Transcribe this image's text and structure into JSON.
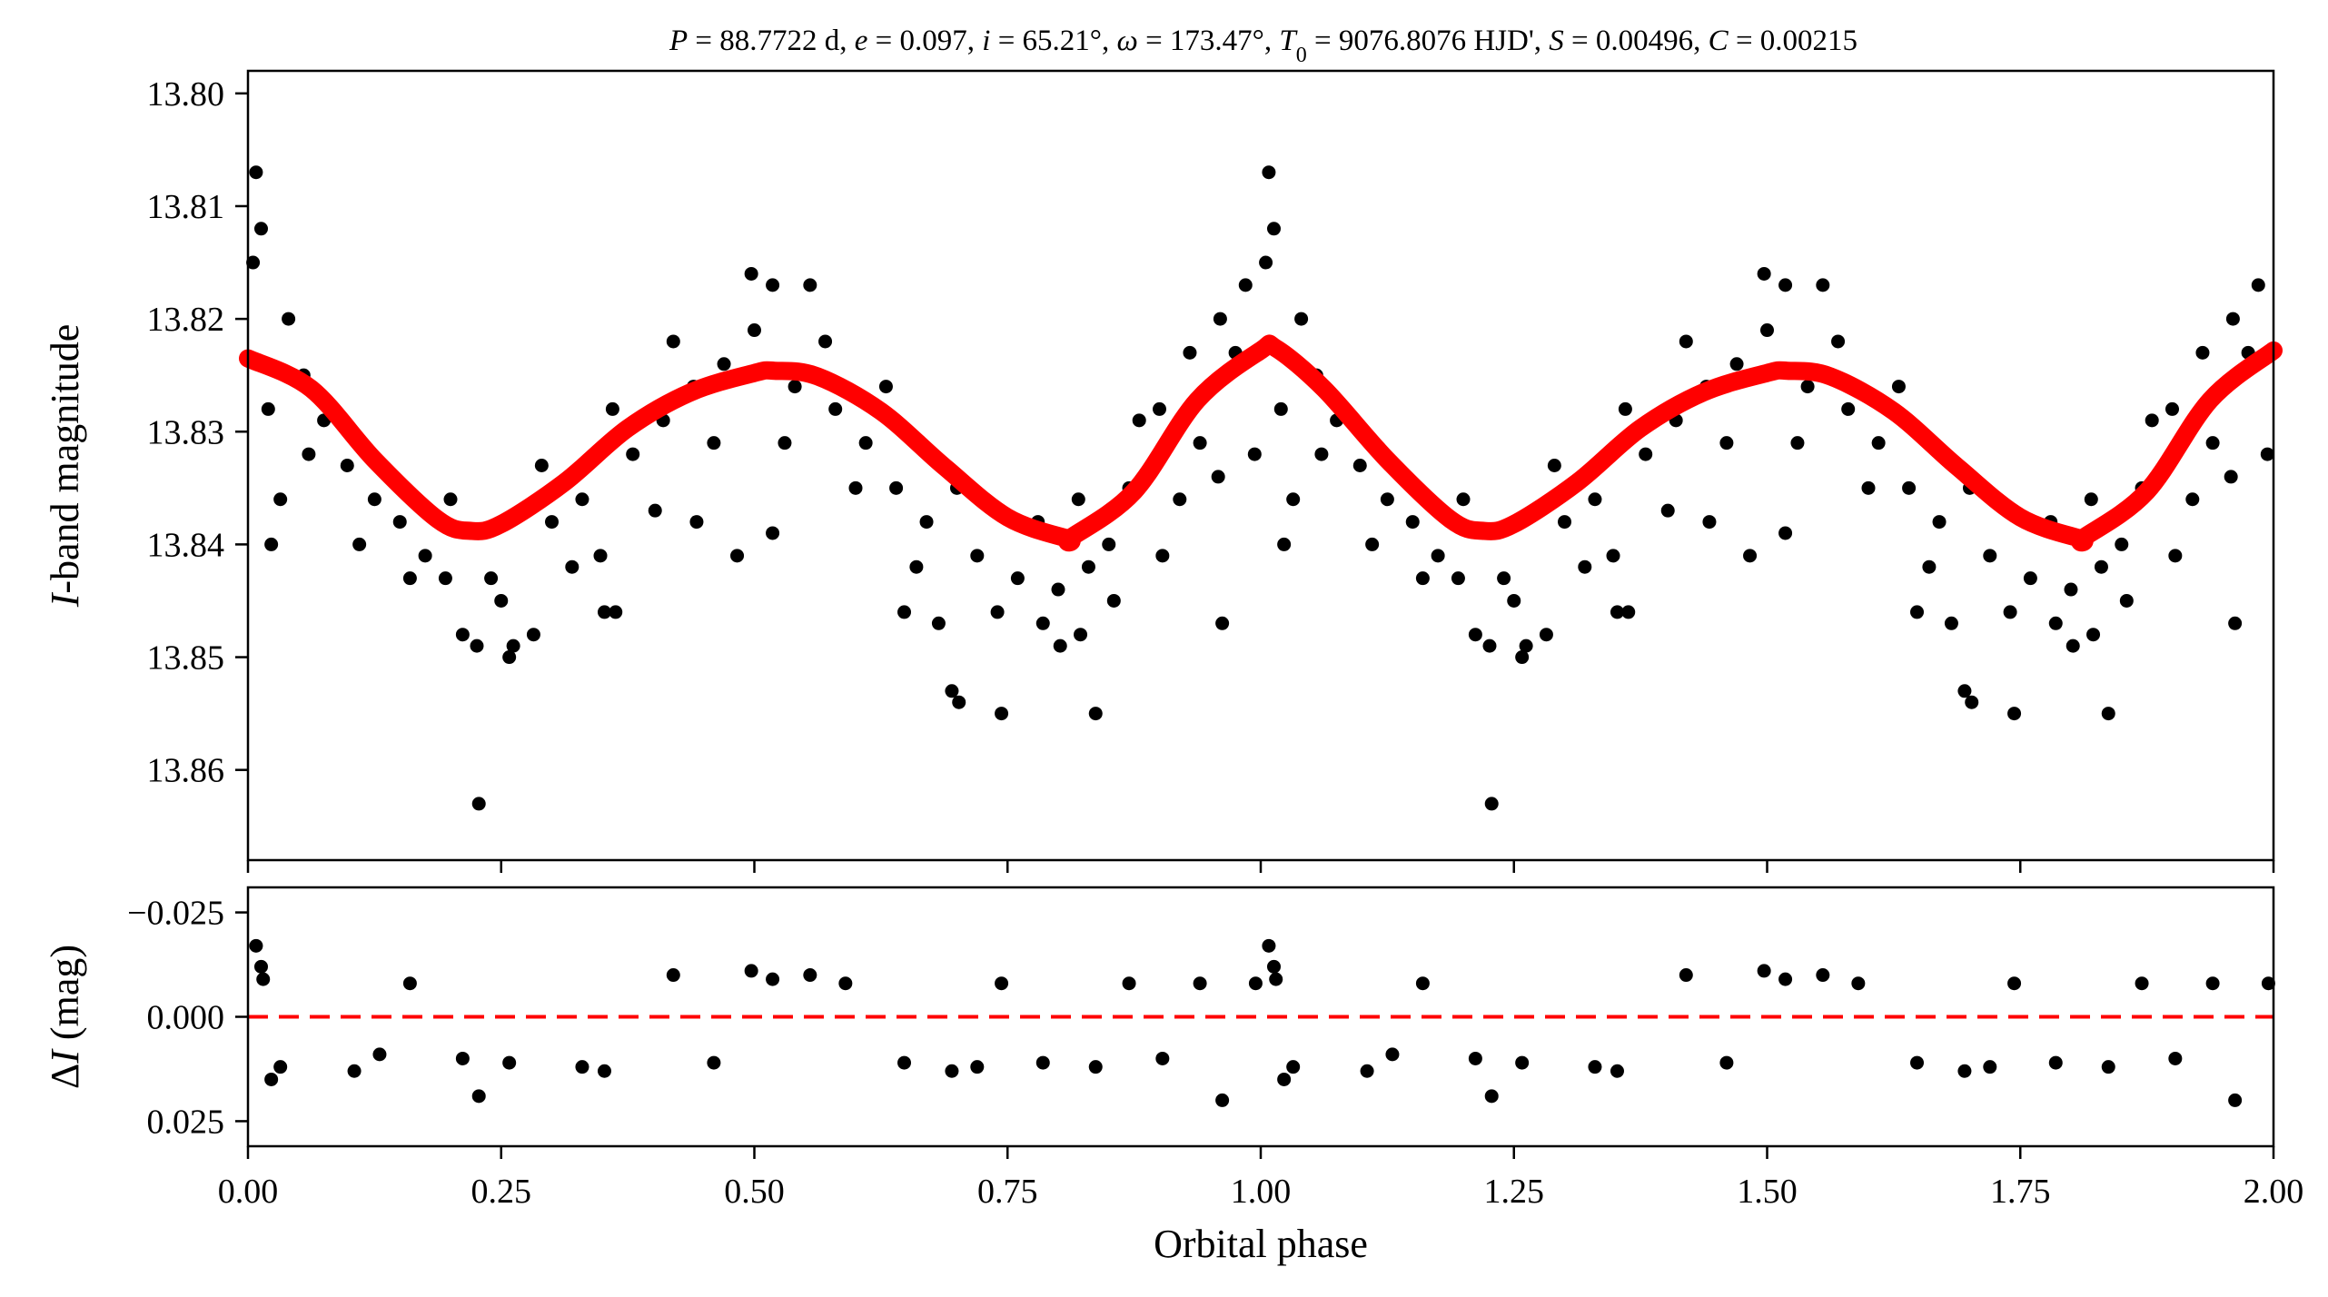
{
  "chart_data": [
    {
      "type": "scatter",
      "panel": "top",
      "title": "P = 88.7722 d, e = 0.097, i = 65.21°, ω = 173.47°, T0 = 9076.8076 HJD', S = 0.00496, C = 0.00215",
      "title_parts": [
        {
          "t": "P",
          "i": true
        },
        {
          "t": " = 88.7722 d, "
        },
        {
          "t": "e",
          "i": true
        },
        {
          "t": " = 0.097, "
        },
        {
          "t": "i",
          "i": true
        },
        {
          "t": " = 65.21°, "
        },
        {
          "t": "ω",
          "i": true
        },
        {
          "t": " = 173.47°, "
        },
        {
          "t": "T",
          "i": true
        },
        {
          "t": "0",
          "sub": true
        },
        {
          "t": " = 9076.8076 HJD', "
        },
        {
          "t": "S",
          "i": true
        },
        {
          "t": " = 0.00496, "
        },
        {
          "t": "C",
          "i": true
        },
        {
          "t": " = 0.00215"
        }
      ],
      "xlabel": "Orbital phase",
      "ylabel": "I-band magnitude",
      "ylabel_parts": [
        {
          "t": "I",
          "i": true
        },
        {
          "t": "-band magnitude"
        }
      ],
      "xlim": [
        0.0,
        2.0
      ],
      "ylim": [
        13.868,
        13.798
      ],
      "y_inverted": true,
      "yticks": [
        "13.80",
        "13.81",
        "13.82",
        "13.83",
        "13.84",
        "13.85",
        "13.86"
      ],
      "ytick_values": [
        13.8,
        13.81,
        13.82,
        13.83,
        13.84,
        13.85,
        13.86
      ],
      "grid": false,
      "series": [
        {
          "kind": "observations",
          "color": "#000000",
          "marker": "circle",
          "phase_range": [
            0.0,
            1.0
          ],
          "repeated_at_phase_plus_1": true,
          "points": [
            [
              0.008,
              13.807
            ],
            [
              0.013,
              13.812
            ],
            [
              0.032,
              13.836
            ],
            [
              0.023,
              13.84
            ],
            [
              0.228,
              13.863
            ],
            [
              0.212,
              13.848
            ],
            [
              0.226,
              13.849
            ],
            [
              0.258,
              13.85
            ],
            [
              0.262,
              13.849
            ],
            [
              0.282,
              13.848
            ],
            [
              0.352,
              13.846
            ],
            [
              0.363,
              13.846
            ],
            [
              0.348,
              13.841
            ],
            [
              0.402,
              13.837
            ],
            [
              0.443,
              13.838
            ],
            [
              0.483,
              13.841
            ],
            [
              0.497,
              13.816
            ],
            [
              0.518,
              13.817
            ],
            [
              0.555,
              13.817
            ],
            [
              0.518,
              13.839
            ],
            [
              0.648,
              13.846
            ],
            [
              0.682,
              13.847
            ],
            [
              0.695,
              13.853
            ],
            [
              0.702,
              13.854
            ],
            [
              0.744,
              13.855
            ],
            [
              0.785,
              13.847
            ],
            [
              0.802,
              13.849
            ],
            [
              0.822,
              13.848
            ],
            [
              0.837,
              13.855
            ],
            [
              0.855,
              13.845
            ],
            [
              0.94,
              13.831
            ],
            [
              0.958,
              13.834
            ],
            [
              0.994,
              13.832
            ],
            [
              0.903,
              13.841
            ],
            [
              0.962,
              13.847
            ],
            [
              0.005,
              13.815
            ],
            [
              0.04,
              13.82
            ],
            [
              0.055,
              13.825
            ],
            [
              0.075,
              13.829
            ],
            [
              0.098,
              13.833
            ],
            [
              0.125,
              13.836
            ],
            [
              0.15,
              13.838
            ],
            [
              0.175,
              13.841
            ],
            [
              0.195,
              13.843
            ],
            [
              0.24,
              13.843
            ],
            [
              0.3,
              13.838
            ],
            [
              0.33,
              13.836
            ],
            [
              0.38,
              13.832
            ],
            [
              0.41,
              13.829
            ],
            [
              0.44,
              13.826
            ],
            [
              0.47,
              13.824
            ],
            [
              0.54,
              13.826
            ],
            [
              0.58,
              13.828
            ],
            [
              0.61,
              13.831
            ],
            [
              0.64,
              13.835
            ],
            [
              0.67,
              13.838
            ],
            [
              0.72,
              13.841
            ],
            [
              0.76,
              13.843
            ],
            [
              0.8,
              13.844
            ],
            [
              0.83,
              13.842
            ],
            [
              0.87,
              13.835
            ],
            [
              0.9,
              13.828
            ],
            [
              0.93,
              13.823
            ],
            [
              0.96,
              13.82
            ],
            [
              0.985,
              13.817
            ],
            [
              0.02,
              13.828
            ],
            [
              0.06,
              13.832
            ],
            [
              0.11,
              13.84
            ],
            [
              0.16,
              13.843
            ],
            [
              0.2,
              13.836
            ],
            [
              0.25,
              13.845
            ],
            [
              0.29,
              13.833
            ],
            [
              0.32,
              13.842
            ],
            [
              0.36,
              13.828
            ],
            [
              0.42,
              13.822
            ],
            [
              0.46,
              13.831
            ],
            [
              0.5,
              13.821
            ],
            [
              0.53,
              13.831
            ],
            [
              0.57,
              13.822
            ],
            [
              0.6,
              13.835
            ],
            [
              0.63,
              13.826
            ],
            [
              0.66,
              13.842
            ],
            [
              0.7,
              13.835
            ],
            [
              0.74,
              13.846
            ],
            [
              0.78,
              13.838
            ],
            [
              0.82,
              13.836
            ],
            [
              0.85,
              13.84
            ],
            [
              0.88,
              13.829
            ],
            [
              0.92,
              13.836
            ],
            [
              0.95,
              13.826
            ],
            [
              0.975,
              13.823
            ]
          ]
        },
        {
          "kind": "model",
          "color": "#ff0000",
          "line_style": "solid",
          "x": [
            0.0,
            0.0625,
            0.125,
            0.1875,
            0.22,
            0.25,
            0.3125,
            0.375,
            0.4375,
            0.5,
            0.52,
            0.5625,
            0.625,
            0.6875,
            0.75,
            0.81,
            0.8125,
            0.875,
            0.9375,
            1.0,
            1.015
          ],
          "y": [
            13.8235,
            13.8262,
            13.8325,
            13.8378,
            13.8388,
            13.8382,
            13.8345,
            13.8297,
            13.8265,
            13.8248,
            13.8246,
            13.8251,
            13.8282,
            13.8331,
            13.8376,
            13.8395,
            13.8394,
            13.8353,
            13.8272,
            13.8228,
            13.8226
          ],
          "repeated_at_phase_plus_1": true
        }
      ]
    },
    {
      "type": "scatter",
      "panel": "bottom",
      "xlabel": "Orbital phase",
      "ylabel": "ΔI (mag)",
      "ylabel_parts": [
        {
          "t": "Δ"
        },
        {
          "t": "I",
          "i": true
        },
        {
          "t": " (mag)"
        }
      ],
      "xlim": [
        0.0,
        2.0
      ],
      "ylim": [
        0.031,
        -0.031
      ],
      "y_inverted": true,
      "xticks": [
        "0.00",
        "0.25",
        "0.50",
        "0.75",
        "1.00",
        "1.25",
        "1.50",
        "1.75",
        "2.00"
      ],
      "xtick_values": [
        0.0,
        0.25,
        0.5,
        0.75,
        1.0,
        1.25,
        1.5,
        1.75,
        2.0
      ],
      "yticks": [
        "−0.025",
        "0.000",
        "0.025"
      ],
      "ytick_values": [
        -0.025,
        0.0,
        0.025
      ],
      "grid": false,
      "series": [
        {
          "kind": "residuals",
          "color": "#000000",
          "marker": "circle",
          "phase_range": [
            0.0,
            1.0
          ],
          "repeated_at_phase_plus_1": true,
          "points": [
            [
              0.008,
              -0.017
            ],
            [
              0.013,
              -0.012
            ],
            [
              0.032,
              0.012
            ],
            [
              0.023,
              0.015
            ],
            [
              0.228,
              0.019
            ],
            [
              0.212,
              0.01
            ],
            [
              0.258,
              0.011
            ],
            [
              0.352,
              0.013
            ],
            [
              0.497,
              -0.011
            ],
            [
              0.518,
              -0.009
            ],
            [
              0.555,
              -0.01
            ],
            [
              0.648,
              0.011
            ],
            [
              0.695,
              0.013
            ],
            [
              0.744,
              -0.008
            ],
            [
              0.785,
              0.011
            ],
            [
              0.837,
              0.012
            ],
            [
              0.962,
              0.02
            ],
            [
              0.94,
              -0.008
            ],
            [
              0.903,
              0.01
            ],
            [
              0.015,
              -0.009
            ],
            [
              0.105,
              0.013
            ],
            [
              0.13,
              0.009
            ],
            [
              0.16,
              -0.008
            ],
            [
              0.33,
              0.012
            ],
            [
              0.42,
              -0.01
            ],
            [
              0.46,
              0.011
            ],
            [
              0.59,
              -0.008
            ],
            [
              0.72,
              0.012
            ],
            [
              0.87,
              -0.008
            ],
            [
              0.995,
              -0.008
            ]
          ]
        },
        {
          "kind": "zero-line",
          "color": "#ff0000",
          "line_style": "dashed",
          "y": 0.0
        }
      ]
    }
  ]
}
